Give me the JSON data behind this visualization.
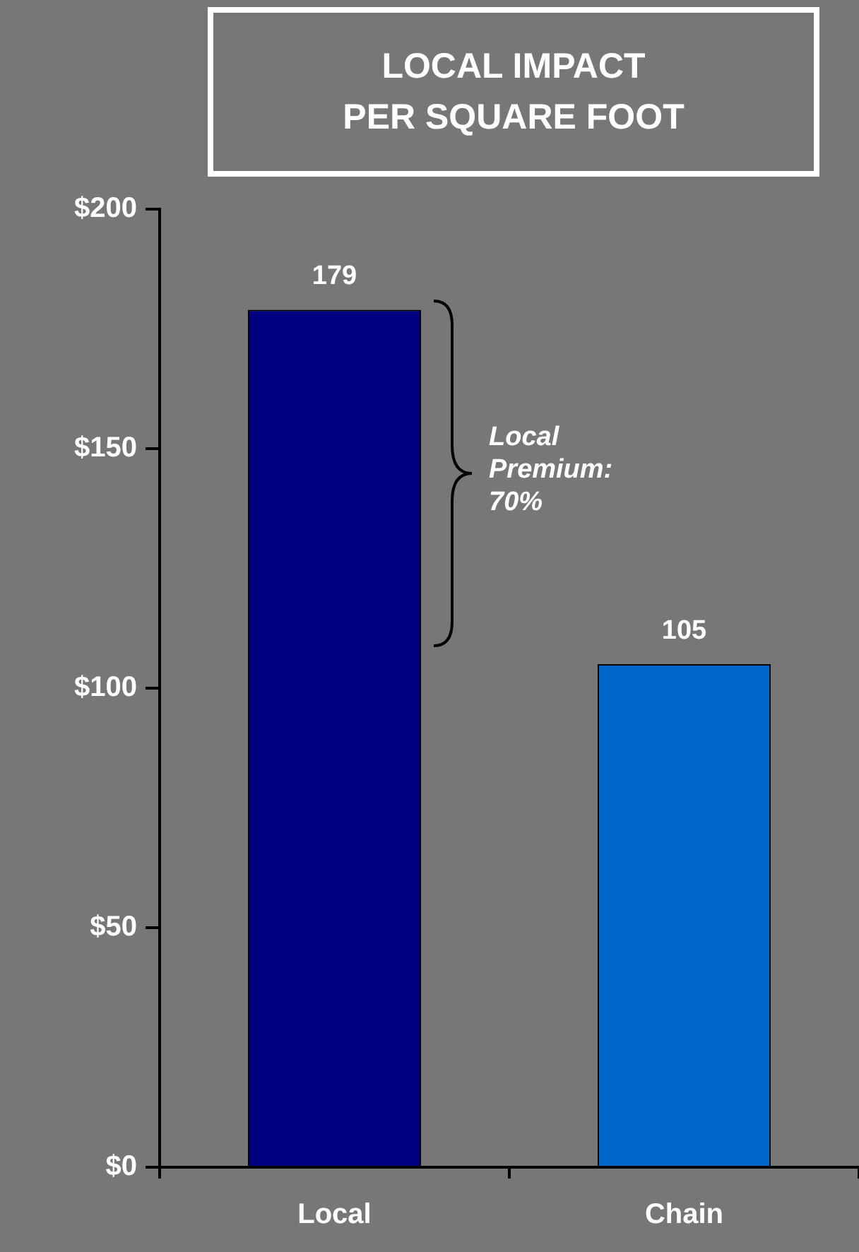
{
  "chart_data": {
    "type": "bar",
    "title": "LOCAL IMPACT\nPER SQUARE FOOT",
    "categories": [
      "Local",
      "Chain"
    ],
    "values": [
      179,
      105
    ],
    "colors": [
      "#000080",
      "#0066cc"
    ],
    "ylim": [
      0,
      200
    ],
    "yticks": [
      {
        "value": 0,
        "label": "$0"
      },
      {
        "value": 50,
        "label": "$50"
      },
      {
        "value": 100,
        "label": "$100"
      },
      {
        "value": 150,
        "label": "$150"
      },
      {
        "value": 200,
        "label": "$200"
      }
    ],
    "data_labels": true,
    "grid": false,
    "legend": false,
    "annotations": [
      "Local Premium: 70%"
    ]
  }
}
